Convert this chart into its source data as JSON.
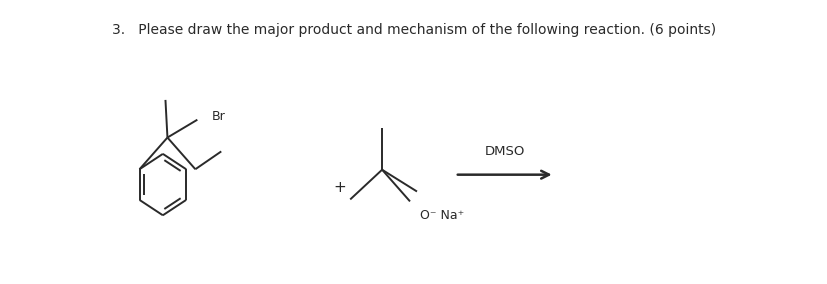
{
  "title": "3.   Please draw the major product and mechanism of the following reaction. (6 points)",
  "bg_color": "#ffffff",
  "line_color": "#2a2a2a",
  "line_width": 1.4,
  "text_color": "#2a2a2a",
  "title_fontsize": 10.0,
  "label_fontsize": 9.0,
  "dmso_label": "DMSO",
  "dmso_fontsize": 9.5,
  "br_label": "Br",
  "ona_label": "O⁻ Na⁺",
  "plus_fontsize": 11
}
